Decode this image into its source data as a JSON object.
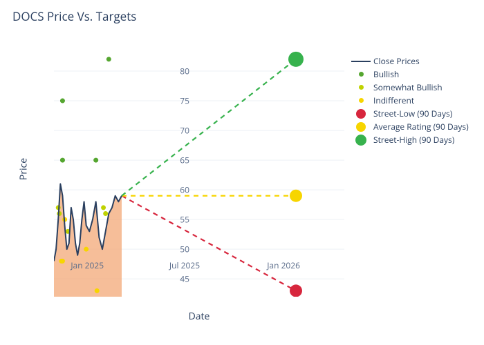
{
  "title": "DOCS Price Vs. Targets",
  "axes": {
    "x": {
      "title": "Date",
      "domain_days": [
        0,
        540
      ],
      "majors": [
        {
          "day": 62,
          "label": "Jan 2025"
        },
        {
          "day": 243,
          "label": "Jul 2025"
        },
        {
          "day": 427,
          "label": "Jan 2026"
        }
      ]
    },
    "y": {
      "title": "Price",
      "domain": [
        42,
        85
      ],
      "ticks": [
        45,
        50,
        55,
        60,
        65,
        70,
        75,
        80
      ],
      "grid_color": "#eef0f5",
      "tick_font_size": 12,
      "title_font_size": 14
    },
    "background_color": "#ffffff"
  },
  "series": {
    "close": {
      "label": "Close Prices",
      "color": "#2a3f5f",
      "line_width": 2,
      "fill_color": "#f3a877",
      "fill_opacity": 0.75,
      "data": [
        [
          0,
          48
        ],
        [
          4,
          50
        ],
        [
          8,
          55
        ],
        [
          12,
          61
        ],
        [
          16,
          59
        ],
        [
          20,
          54
        ],
        [
          24,
          50
        ],
        [
          28,
          51
        ],
        [
          32,
          57
        ],
        [
          36,
          55
        ],
        [
          40,
          51
        ],
        [
          44,
          49
        ],
        [
          48,
          51
        ],
        [
          52,
          55
        ],
        [
          56,
          58
        ],
        [
          60,
          54
        ],
        [
          66,
          53
        ],
        [
          72,
          55
        ],
        [
          78,
          58
        ],
        [
          84,
          52
        ],
        [
          90,
          50
        ],
        [
          96,
          53
        ],
        [
          102,
          56
        ],
        [
          108,
          57
        ],
        [
          114,
          59
        ],
        [
          120,
          58
        ],
        [
          126,
          59
        ]
      ]
    },
    "bullish": {
      "label": "Bullish",
      "color": "#55a630",
      "marker_radius": 3.5,
      "points": [
        [
          16,
          65
        ],
        [
          16,
          75
        ],
        [
          78,
          65
        ],
        [
          102,
          82
        ]
      ]
    },
    "somewhat_bullish": {
      "label": "Somewhat Bullish",
      "color": "#bfd200",
      "marker_radius": 3.5,
      "points": [
        [
          8,
          57
        ],
        [
          10,
          56
        ],
        [
          26,
          53
        ],
        [
          92,
          57
        ],
        [
          96,
          56
        ]
      ]
    },
    "indifferent": {
      "label": "Indifferent",
      "color": "#f7d500",
      "marker_radius": 3.5,
      "points": [
        [
          14,
          48
        ],
        [
          16,
          48
        ],
        [
          20,
          55
        ],
        [
          60,
          50
        ],
        [
          80,
          43
        ]
      ]
    },
    "street_low": {
      "label": "Street-Low (90 Days)",
      "color": "#d7263d",
      "marker_radius": 9,
      "endpoint": {
        "day": 450,
        "value": 43
      }
    },
    "average_rating": {
      "label": "Average Rating (90 Days)",
      "color": "#f7d500",
      "marker_radius": 9,
      "endpoint": {
        "day": 450,
        "value": 59
      }
    },
    "street_high": {
      "label": "Street-High (90 Days)",
      "color": "#37b24d",
      "marker_radius": 11,
      "endpoint": {
        "day": 450,
        "value": 82
      }
    },
    "projection_origin": {
      "day": 126,
      "value": 59
    },
    "projection_dash": "7,6",
    "projection_line_width": 2.2
  },
  "legend_order": [
    "close",
    "bullish",
    "somewhat_bullish",
    "indifferent",
    "street_low",
    "average_rating",
    "street_high"
  ],
  "title_font_size": 17,
  "title_color": "#2a3f5f"
}
